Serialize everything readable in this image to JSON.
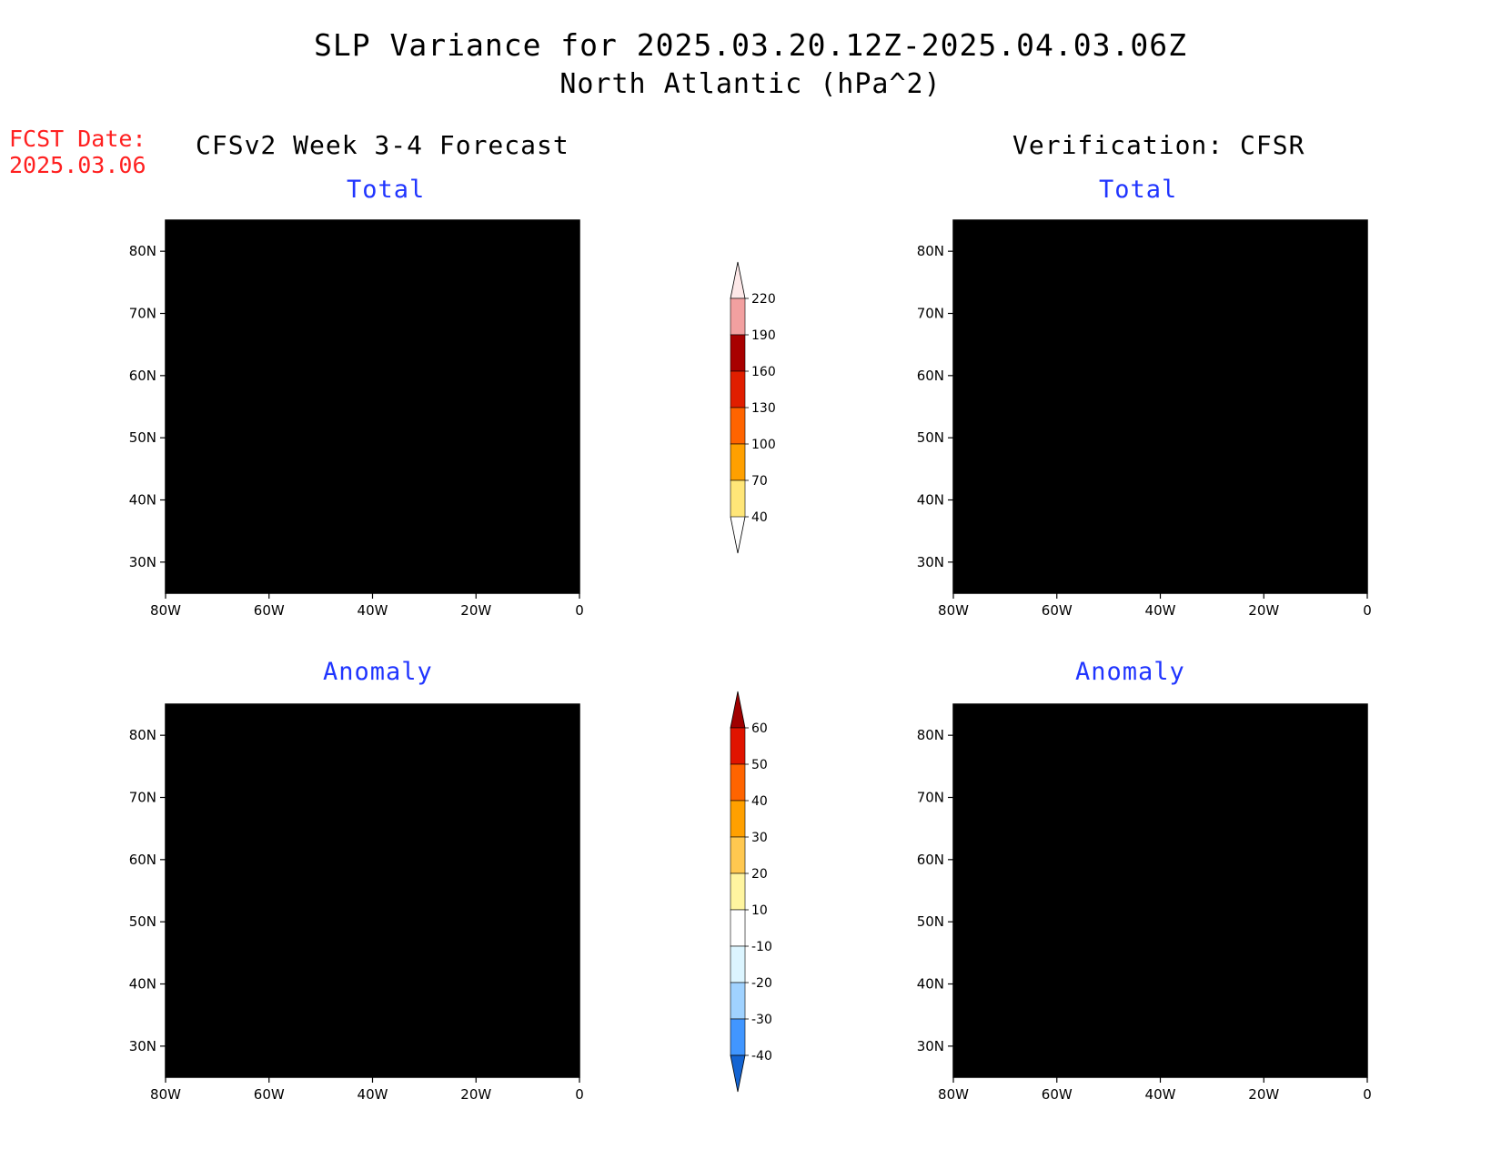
{
  "title": {
    "line1": "SLP Variance for 2025.03.20.12Z-2025.04.03.06Z",
    "line2": "North Atlantic (hPa^2)"
  },
  "forecast_date": {
    "label": "FCST Date:",
    "value": "2025.03.06"
  },
  "columns": {
    "left": "CFSv2 Week 3-4 Forecast",
    "right": "Verification: CFSR"
  },
  "panels": [
    {
      "id": "fcst-total",
      "subtitle": "Total"
    },
    {
      "id": "cfsr-total",
      "subtitle": "Total"
    },
    {
      "id": "fcst-anomaly",
      "subtitle": "Anomaly"
    },
    {
      "id": "cfsr-anomaly",
      "subtitle": "Anomaly"
    }
  ],
  "axes": {
    "lat_labels": [
      "80N",
      "70N",
      "60N",
      "50N",
      "40N",
      "30N"
    ],
    "lon_labels": [
      "80W",
      "60W",
      "40W",
      "20W",
      "0"
    ],
    "lon_range": [
      -80,
      0
    ],
    "lat_range": [
      25,
      85
    ]
  },
  "colorbars": {
    "total": {
      "levels": [
        "220",
        "190",
        "160",
        "130",
        "100",
        "70",
        "40"
      ],
      "colors": [
        "#fde8e8",
        "#f2a0a0",
        "#a80000",
        "#e01e00",
        "#ff6400",
        "#ffa000",
        "#ffe678"
      ]
    },
    "anomaly": {
      "levels": [
        "60",
        "50",
        "40",
        "30",
        "20",
        "10",
        "-10",
        "-20",
        "-30",
        "-40"
      ],
      "colors": [
        "#a00000",
        "#e01400",
        "#ff6400",
        "#ffa000",
        "#ffc850",
        "#fff5a0",
        "#ffffff",
        "#dcf5ff",
        "#a0d2ff",
        "#4196ff",
        "#1464d2"
      ]
    }
  },
  "map_data": {
    "projection": "lat-lon",
    "features": [
      "coastlines",
      "filled-contours"
    ]
  }
}
